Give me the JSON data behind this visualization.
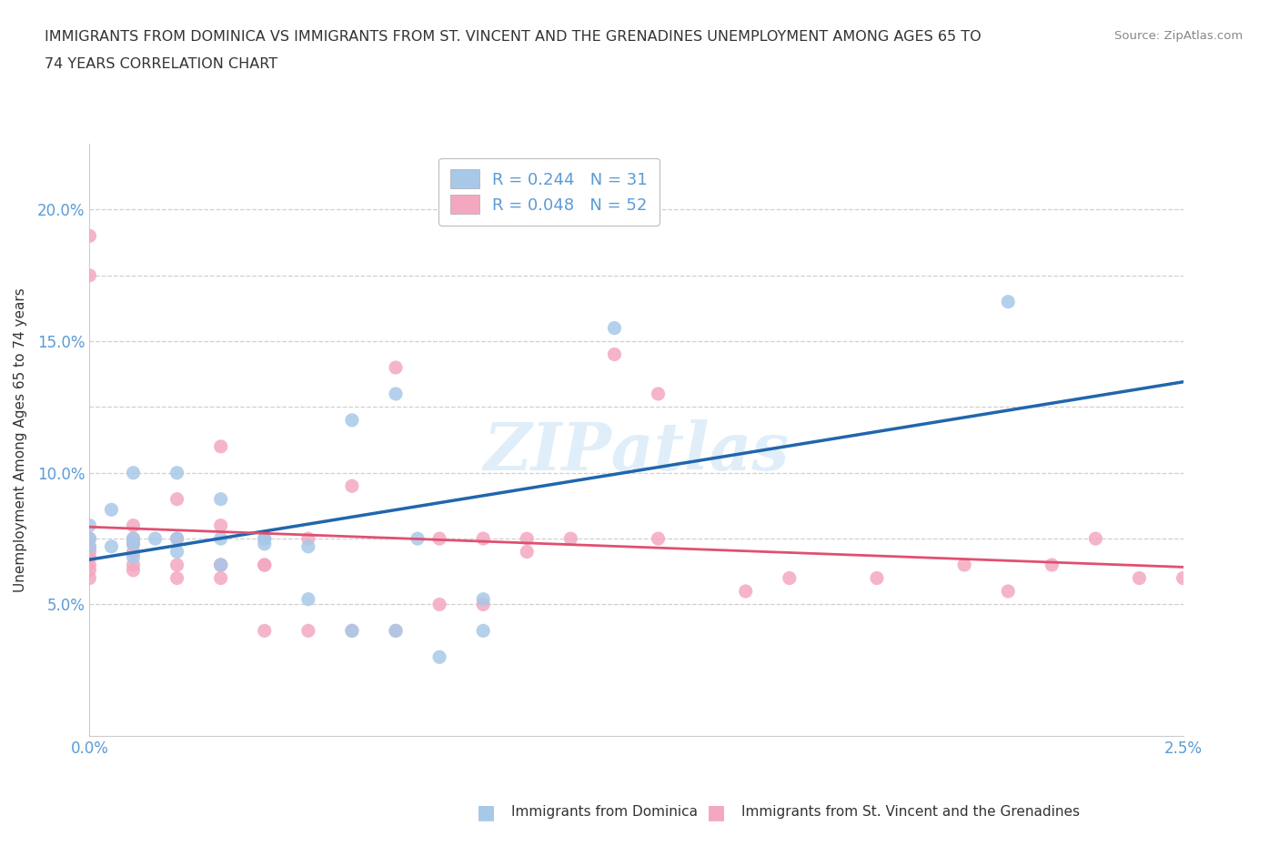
{
  "title_line1": "IMMIGRANTS FROM DOMINICA VS IMMIGRANTS FROM ST. VINCENT AND THE GRENADINES UNEMPLOYMENT AMONG AGES 65 TO",
  "title_line2": "74 YEARS CORRELATION CHART",
  "source_text": "Source: ZipAtlas.com",
  "ylabel": "Unemployment Among Ages 65 to 74 years",
  "legend_R_blue": "R = 0.244",
  "legend_N_blue": "N = 31",
  "legend_R_pink": "R = 0.048",
  "legend_N_pink": "N = 52",
  "legend_label_blue": "Immigrants from Dominica",
  "legend_label_pink": "Immigrants from St. Vincent and the Grenadines",
  "watermark_text": "ZIPatlas",
  "blue_color": "#a8c8e8",
  "pink_color": "#f4a8c0",
  "trend_blue_color": "#2166ac",
  "trend_pink_color": "#e05070",
  "xmin": 0.0,
  "xmax": 0.025,
  "ymin": 0.0,
  "ymax": 0.225,
  "yticks": [
    0.05,
    0.075,
    0.1,
    0.125,
    0.15,
    0.175,
    0.2
  ],
  "ytick_labels": [
    "5.0%",
    "",
    "10.0%",
    "",
    "15.0%",
    "",
    "20.0%"
  ],
  "xticks": [
    0.0,
    0.005,
    0.01,
    0.015,
    0.02,
    0.025
  ],
  "xtick_labels": [
    "0.0%",
    "",
    "",
    "",
    "",
    "2.5%"
  ],
  "blue_x": [
    0.0,
    0.0,
    0.0,
    0.0005,
    0.0005,
    0.001,
    0.001,
    0.001,
    0.001,
    0.0015,
    0.002,
    0.002,
    0.002,
    0.003,
    0.003,
    0.003,
    0.004,
    0.004,
    0.004,
    0.005,
    0.005,
    0.006,
    0.006,
    0.007,
    0.007,
    0.0075,
    0.008,
    0.009,
    0.009,
    0.012,
    0.021
  ],
  "blue_y": [
    0.072,
    0.075,
    0.08,
    0.072,
    0.086,
    0.068,
    0.073,
    0.075,
    0.1,
    0.075,
    0.07,
    0.075,
    0.1,
    0.065,
    0.075,
    0.09,
    0.073,
    0.075,
    0.075,
    0.052,
    0.072,
    0.04,
    0.12,
    0.04,
    0.13,
    0.075,
    0.03,
    0.04,
    0.052,
    0.155,
    0.165
  ],
  "pink_x": [
    0.0,
    0.0,
    0.0,
    0.0,
    0.0,
    0.0,
    0.0,
    0.0,
    0.0,
    0.001,
    0.001,
    0.001,
    0.001,
    0.001,
    0.001,
    0.002,
    0.002,
    0.002,
    0.002,
    0.003,
    0.003,
    0.003,
    0.003,
    0.003,
    0.004,
    0.004,
    0.004,
    0.005,
    0.005,
    0.006,
    0.006,
    0.007,
    0.007,
    0.008,
    0.008,
    0.009,
    0.009,
    0.01,
    0.01,
    0.011,
    0.012,
    0.013,
    0.013,
    0.015,
    0.016,
    0.018,
    0.02,
    0.021,
    0.022,
    0.023,
    0.024,
    0.025
  ],
  "pink_y": [
    0.19,
    0.175,
    0.075,
    0.072,
    0.07,
    0.068,
    0.065,
    0.063,
    0.06,
    0.08,
    0.075,
    0.073,
    0.07,
    0.065,
    0.063,
    0.09,
    0.075,
    0.065,
    0.06,
    0.11,
    0.08,
    0.065,
    0.065,
    0.06,
    0.065,
    0.065,
    0.04,
    0.075,
    0.04,
    0.095,
    0.04,
    0.14,
    0.04,
    0.075,
    0.05,
    0.075,
    0.05,
    0.075,
    0.07,
    0.075,
    0.145,
    0.13,
    0.075,
    0.055,
    0.06,
    0.06,
    0.065,
    0.055,
    0.065,
    0.075,
    0.06,
    0.06
  ],
  "grid_color": "#d0d0d0",
  "background_color": "#ffffff",
  "tick_color": "#5b9bd5",
  "title_color": "#333333",
  "source_color": "#888888",
  "ylabel_color": "#333333"
}
